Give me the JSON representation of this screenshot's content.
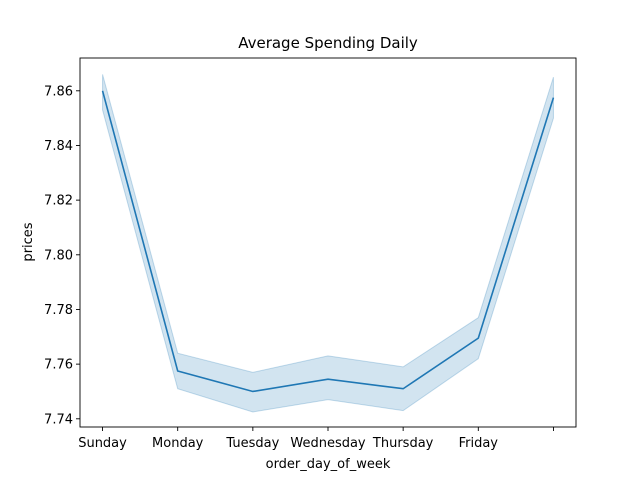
{
  "chart_data": {
    "type": "line",
    "title": "Average Spending Daily",
    "xlabel": "order_day_of_week",
    "ylabel": "prices",
    "x_tick_labels": [
      "Sunday",
      "Monday",
      "Tuesday",
      "Wednesday",
      "Thursday",
      "Friday",
      ""
    ],
    "y_ticks": [
      7.74,
      7.76,
      7.78,
      7.8,
      7.82,
      7.84,
      7.86
    ],
    "y_tick_labels": [
      "7.74",
      "7.76",
      "7.78",
      "7.80",
      "7.82",
      "7.84",
      "7.86"
    ],
    "ylim": [
      7.737,
      7.872
    ],
    "xlim": [
      -0.3,
      6.3
    ],
    "grid": false,
    "series": [
      {
        "x": [
          0,
          1,
          2,
          3,
          4,
          5,
          6
        ],
        "values": [
          7.86,
          7.7575,
          7.75,
          7.7545,
          7.751,
          7.7695,
          7.8575
        ],
        "ci_lower": [
          7.853,
          7.751,
          7.7425,
          7.747,
          7.743,
          7.762,
          7.85
        ],
        "ci_upper": [
          7.866,
          7.764,
          7.757,
          7.763,
          7.759,
          7.777,
          7.865
        ],
        "color": "#1f77b4"
      }
    ]
  }
}
